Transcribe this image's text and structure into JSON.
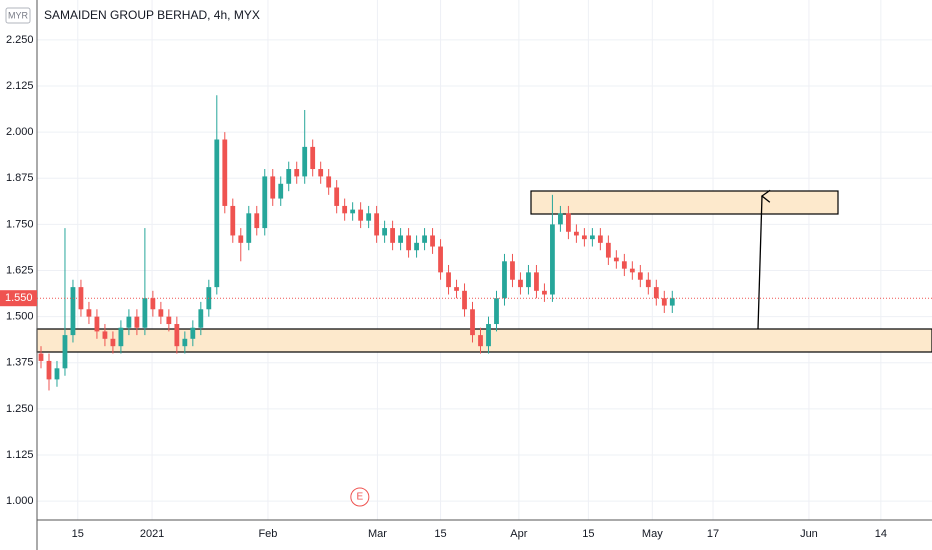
{
  "chart_data": {
    "type": "candlestick",
    "title": "SAMAIDEN GROUP BERHAD, 4h, MYX",
    "currency": "MYR",
    "up_color": "#26a69a",
    "down_color": "#ef5350",
    "series": {
      "open": [
        1.4,
        1.38,
        1.33,
        1.36,
        1.45,
        1.58,
        1.52,
        1.5,
        1.46,
        1.44,
        1.42,
        1.47,
        1.5,
        1.47,
        1.55,
        1.52,
        1.5,
        1.48,
        1.42,
        1.44,
        1.47,
        1.52,
        1.58,
        1.98,
        1.8,
        1.72,
        1.7,
        1.78,
        1.74,
        1.88,
        1.82,
        1.86,
        1.9,
        1.88,
        1.96,
        1.9,
        1.88,
        1.85,
        1.8,
        1.78,
        1.79,
        1.76,
        1.78,
        1.72,
        1.74,
        1.7,
        1.72,
        1.68,
        1.7,
        1.72,
        1.69,
        1.62,
        1.58,
        1.57,
        1.52,
        1.45,
        1.42,
        1.48,
        1.55,
        1.65,
        1.6,
        1.58,
        1.62,
        1.57,
        1.56,
        1.75,
        1.78,
        1.73,
        1.72,
        1.71,
        1.72,
        1.7,
        1.66,
        1.65,
        1.63,
        1.62,
        1.6,
        1.58,
        1.55,
        1.53
      ],
      "high": [
        1.42,
        1.4,
        1.38,
        1.74,
        1.6,
        1.6,
        1.54,
        1.52,
        1.48,
        1.46,
        1.49,
        1.52,
        1.52,
        1.74,
        1.57,
        1.54,
        1.52,
        1.5,
        1.46,
        1.49,
        1.54,
        1.6,
        2.1,
        2.0,
        1.82,
        1.74,
        1.8,
        1.8,
        1.9,
        1.9,
        1.88,
        1.92,
        1.92,
        2.06,
        1.98,
        1.92,
        1.9,
        1.87,
        1.82,
        1.81,
        1.81,
        1.8,
        1.8,
        1.76,
        1.76,
        1.74,
        1.74,
        1.72,
        1.74,
        1.74,
        1.71,
        1.64,
        1.6,
        1.59,
        1.54,
        1.47,
        1.5,
        1.57,
        1.67,
        1.67,
        1.62,
        1.64,
        1.64,
        1.59,
        1.83,
        1.8,
        1.8,
        1.75,
        1.74,
        1.74,
        1.74,
        1.72,
        1.68,
        1.67,
        1.65,
        1.64,
        1.62,
        1.6,
        1.57,
        1.57
      ],
      "low": [
        1.36,
        1.3,
        1.31,
        1.34,
        1.43,
        1.5,
        1.48,
        1.44,
        1.42,
        1.4,
        1.4,
        1.45,
        1.45,
        1.45,
        1.5,
        1.48,
        1.46,
        1.4,
        1.4,
        1.42,
        1.45,
        1.5,
        1.56,
        1.78,
        1.7,
        1.65,
        1.68,
        1.72,
        1.72,
        1.8,
        1.8,
        1.84,
        1.86,
        1.86,
        1.88,
        1.86,
        1.83,
        1.78,
        1.76,
        1.76,
        1.74,
        1.74,
        1.7,
        1.7,
        1.68,
        1.68,
        1.66,
        1.66,
        1.68,
        1.67,
        1.6,
        1.56,
        1.55,
        1.5,
        1.43,
        1.4,
        1.4,
        1.46,
        1.53,
        1.58,
        1.56,
        1.56,
        1.55,
        1.54,
        1.54,
        1.73,
        1.71,
        1.7,
        1.69,
        1.69,
        1.68,
        1.64,
        1.63,
        1.61,
        1.6,
        1.58,
        1.56,
        1.53,
        1.51,
        1.51
      ],
      "close": [
        1.38,
        1.33,
        1.36,
        1.45,
        1.58,
        1.52,
        1.5,
        1.46,
        1.44,
        1.42,
        1.47,
        1.5,
        1.47,
        1.55,
        1.52,
        1.5,
        1.48,
        1.42,
        1.44,
        1.47,
        1.52,
        1.58,
        1.98,
        1.8,
        1.72,
        1.7,
        1.78,
        1.74,
        1.88,
        1.82,
        1.86,
        1.9,
        1.88,
        1.96,
        1.9,
        1.88,
        1.85,
        1.8,
        1.78,
        1.79,
        1.76,
        1.78,
        1.72,
        1.74,
        1.7,
        1.72,
        1.68,
        1.7,
        1.72,
        1.69,
        1.62,
        1.58,
        1.57,
        1.52,
        1.45,
        1.42,
        1.48,
        1.55,
        1.65,
        1.6,
        1.58,
        1.62,
        1.57,
        1.56,
        1.75,
        1.78,
        1.73,
        1.72,
        1.71,
        1.72,
        1.7,
        1.66,
        1.65,
        1.63,
        1.62,
        1.6,
        1.58,
        1.55,
        1.53,
        1.55
      ]
    },
    "xlim": [
      0,
      112
    ],
    "xticks": [
      {
        "value": 5.1,
        "label": "15"
      },
      {
        "value": 14.4,
        "label": "2021"
      },
      {
        "value": 28.9,
        "label": "Feb"
      },
      {
        "value": 42.6,
        "label": "Mar"
      },
      {
        "value": 50.5,
        "label": "15"
      },
      {
        "value": 60.3,
        "label": "Apr"
      },
      {
        "value": 69.0,
        "label": "15"
      },
      {
        "value": 77.0,
        "label": "May"
      },
      {
        "value": 84.6,
        "label": "17"
      },
      {
        "value": 96.6,
        "label": "Jun"
      },
      {
        "value": 105.6,
        "label": "14"
      }
    ],
    "ylim": [
      0.949,
      2.358
    ],
    "yticks": [
      {
        "value": 1.0,
        "label": "1.000"
      },
      {
        "value": 1.125,
        "label": "1.125"
      },
      {
        "value": 1.25,
        "label": "1.250"
      },
      {
        "value": 1.375,
        "label": "1.375"
      },
      {
        "value": 1.5,
        "label": "1.500"
      },
      {
        "value": 1.625,
        "label": "1.625"
      },
      {
        "value": 1.75,
        "label": "1.750"
      },
      {
        "value": 1.875,
        "label": "1.875"
      },
      {
        "value": 2.0,
        "label": "2.000"
      },
      {
        "value": 2.125,
        "label": "2.125"
      },
      {
        "value": 2.25,
        "label": "2.250"
      }
    ],
    "grid": true,
    "last_price": {
      "value": 1.55,
      "label": "1.550"
    },
    "events": [
      {
        "x": 40.4,
        "label": "E"
      }
    ]
  }
}
